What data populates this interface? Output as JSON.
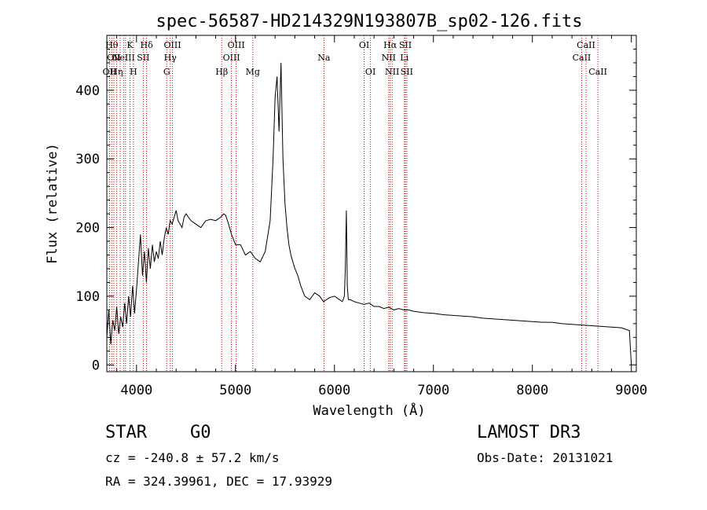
{
  "chart_data": {
    "type": "line",
    "title": "spec-56587-HD214329N193807B_sp02-126.fits",
    "xlabel": "Wavelength (Å)",
    "ylabel": "Flux (relative)",
    "xlim": [
      3700,
      9050
    ],
    "ylim": [
      -10,
      480
    ],
    "x_ticks": [
      4000,
      5000,
      6000,
      7000,
      8000,
      9000
    ],
    "x_tick_labels": [
      "4000",
      "5000",
      "6000",
      "7000",
      "8000",
      "9000"
    ],
    "y_ticks": [
      0,
      100,
      200,
      300,
      400
    ],
    "y_tick_labels": [
      "0",
      "100",
      "200",
      "300",
      "400"
    ],
    "grid": false,
    "line_color": "#000000",
    "marker_color": "#cc0000",
    "series": [
      {
        "x": [
          3700,
          3720,
          3740,
          3760,
          3780,
          3800,
          3820,
          3840,
          3860,
          3880,
          3900,
          3920,
          3940,
          3960,
          3980,
          4000,
          4020,
          4040,
          4060,
          4080,
          4100,
          4120,
          4140,
          4160,
          4180,
          4200,
          4220,
          4240,
          4260,
          4280,
          4300,
          4320,
          4340,
          4360,
          4380,
          4400,
          4420,
          4440,
          4460,
          4480,
          4500,
          4550,
          4600,
          4650,
          4700,
          4750,
          4800,
          4850,
          4880,
          4900,
          4930,
          4960,
          5000,
          5050,
          5100,
          5150,
          5200,
          5250,
          5300,
          5350,
          5380,
          5400,
          5420,
          5440,
          5460,
          5480,
          5500,
          5520,
          5540,
          5560,
          5580,
          5600,
          5630,
          5660,
          5700,
          5750,
          5800,
          5850,
          5890,
          5950,
          6000,
          6050,
          6080,
          6100,
          6110,
          6120,
          6130,
          6140,
          6160,
          6200,
          6250,
          6300,
          6350,
          6400,
          6450,
          6500,
          6550,
          6600,
          6650,
          6700,
          6750,
          6800,
          6900,
          7000,
          7100,
          7200,
          7300,
          7400,
          7500,
          7600,
          7700,
          7800,
          7900,
          8000,
          8100,
          8200,
          8300,
          8400,
          8500,
          8600,
          8700,
          8800,
          8900,
          8980,
          9000
        ],
        "y": [
          40,
          80,
          30,
          65,
          50,
          85,
          45,
          70,
          55,
          90,
          60,
          100,
          70,
          115,
          75,
          110,
          150,
          190,
          130,
          165,
          120,
          170,
          140,
          175,
          150,
          165,
          155,
          180,
          160,
          185,
          200,
          190,
          210,
          205,
          215,
          225,
          210,
          205,
          200,
          215,
          220,
          210,
          205,
          200,
          210,
          212,
          210,
          215,
          220,
          218,
          205,
          190,
          175,
          175,
          160,
          165,
          155,
          150,
          165,
          210,
          300,
          390,
          420,
          340,
          440,
          300,
          235,
          200,
          175,
          160,
          150,
          140,
          130,
          115,
          100,
          95,
          105,
          100,
          92,
          98,
          100,
          95,
          92,
          100,
          140,
          225,
          115,
          95,
          95,
          92,
          90,
          88,
          90,
          85,
          85,
          82,
          84,
          80,
          82,
          80,
          80,
          78,
          76,
          75,
          73,
          72,
          71,
          70,
          68,
          67,
          66,
          65,
          64,
          63,
          62,
          62,
          60,
          59,
          58,
          57,
          56,
          55,
          54,
          50,
          0
        ]
      }
    ],
    "line_markers": [
      {
        "wavelength": 3727,
        "label": "OII",
        "row": 2
      },
      {
        "wavelength": 3750,
        "label": "Hθ",
        "row": 0
      },
      {
        "wavelength": 3771,
        "label": "OII",
        "row": 1
      },
      {
        "wavelength": 3798,
        "label": "Hη",
        "row": 2
      },
      {
        "wavelength": 3835,
        "label": "",
        "row": 0
      },
      {
        "wavelength": 3869,
        "label": "NeIII",
        "row": 1
      },
      {
        "wavelength": 3889,
        "label": "",
        "row": 0
      },
      {
        "wavelength": 3934,
        "label": "K",
        "row": 0
      },
      {
        "wavelength": 3969,
        "label": "H",
        "row": 2
      },
      {
        "wavelength": 4068,
        "label": "SII",
        "row": 1
      },
      {
        "wavelength": 4102,
        "label": "Hδ",
        "row": 0
      },
      {
        "wavelength": 4305,
        "label": "G",
        "row": 2
      },
      {
        "wavelength": 4341,
        "label": "Hγ",
        "row": 1
      },
      {
        "wavelength": 4363,
        "label": "OIII",
        "row": 0
      },
      {
        "wavelength": 4861,
        "label": "Hβ",
        "row": 2
      },
      {
        "wavelength": 4959,
        "label": "OIII",
        "row": 1
      },
      {
        "wavelength": 5007,
        "label": "OIII",
        "row": 0
      },
      {
        "wavelength": 5175,
        "label": "Mg",
        "row": 2
      },
      {
        "wavelength": 5894,
        "label": "Na",
        "row": 1
      },
      {
        "wavelength": 6300,
        "label": "OI",
        "row": 0
      },
      {
        "wavelength": 6364,
        "label": "OI",
        "row": 2
      },
      {
        "wavelength": 6548,
        "label": "NII",
        "row": 1
      },
      {
        "wavelength": 6563,
        "label": "Hα",
        "row": 0
      },
      {
        "wavelength": 6583,
        "label": "NII",
        "row": 2
      },
      {
        "wavelength": 6707,
        "label": "Li",
        "row": 1
      },
      {
        "wavelength": 6716,
        "label": "SII",
        "row": 0
      },
      {
        "wavelength": 6731,
        "label": "SII",
        "row": 2
      },
      {
        "wavelength": 8498,
        "label": "CaII",
        "row": 1
      },
      {
        "wavelength": 8542,
        "label": "CaII",
        "row": 0
      },
      {
        "wavelength": 8662,
        "label": "CaII",
        "row": 2
      }
    ]
  },
  "info": {
    "object_class": "STAR",
    "subclass": "G0",
    "survey": "LAMOST DR3",
    "redshift": "cz = -240.8 ± 57.2 km/s",
    "obs_date": "Obs-Date: 20131021",
    "coords": "RA = 324.39961, DEC =  17.93929"
  }
}
